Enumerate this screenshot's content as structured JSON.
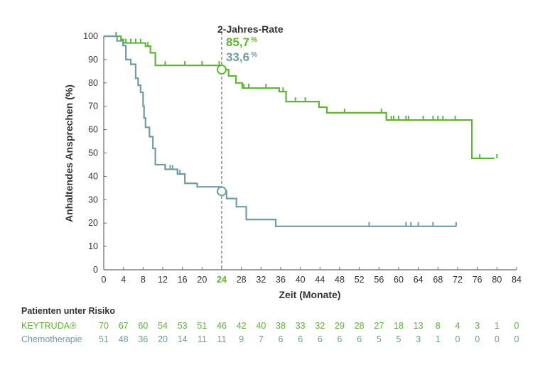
{
  "chart_data": {
    "type": "line",
    "subtype": "kaplan-meier step",
    "xlabel": "Zeit (Monate)",
    "ylabel": "Anhaltendes Ansprechen (%)",
    "xlim": [
      0,
      84
    ],
    "ylim": [
      0,
      100
    ],
    "xticks": [
      0,
      4,
      8,
      12,
      16,
      20,
      24,
      28,
      32,
      36,
      40,
      44,
      48,
      52,
      56,
      60,
      64,
      68,
      72,
      76,
      80,
      84
    ],
    "yticks": [
      0,
      10,
      20,
      30,
      40,
      50,
      60,
      70,
      80,
      90,
      100
    ],
    "highlight_x": 24,
    "grid": false,
    "annotation": {
      "title": "2-Jahres-Rate",
      "values": [
        {
          "value": "85,7",
          "unit": "%",
          "series": 0
        },
        {
          "value": "33,6",
          "unit": "%",
          "series": 1
        }
      ]
    },
    "series": [
      {
        "name": "KEYTRUDA®",
        "color": "#5cb632",
        "steps": [
          [
            0,
            100
          ],
          [
            3.5,
            98.6
          ],
          [
            4,
            97.1
          ],
          [
            8.5,
            95.7
          ],
          [
            9.5,
            92.9
          ],
          [
            10.5,
            87.5
          ],
          [
            24,
            85.7
          ],
          [
            25.4,
            83
          ],
          [
            26.9,
            80
          ],
          [
            28.2,
            77.8
          ],
          [
            35.7,
            76.3
          ],
          [
            37.1,
            72
          ],
          [
            43.8,
            69.6
          ],
          [
            45.4,
            67.2
          ],
          [
            57.5,
            64.1
          ],
          [
            74.9,
            47.7
          ]
        ],
        "end_x": 79.5,
        "censored": [
          2.5,
          4.5,
          5.5,
          6.5,
          7.5,
          9,
          12.5,
          16.5,
          20,
          23.5,
          28.5,
          29.5,
          33,
          36.5,
          39,
          41,
          49,
          56.5,
          57.5,
          58.5,
          59,
          60,
          61.5,
          62,
          65,
          67,
          68,
          69,
          71.5,
          76.5,
          80
        ]
      },
      {
        "name": "Chemotherapie",
        "color": "#6f9ba4",
        "steps": [
          [
            0,
            100
          ],
          [
            2.7,
            98
          ],
          [
            3.9,
            96
          ],
          [
            4.5,
            90
          ],
          [
            5.5,
            88
          ],
          [
            6.5,
            82
          ],
          [
            7,
            79
          ],
          [
            7.5,
            76
          ],
          [
            8,
            70
          ],
          [
            8.2,
            65
          ],
          [
            8.5,
            61
          ],
          [
            9.3,
            57
          ],
          [
            10,
            52
          ],
          [
            10.5,
            45
          ],
          [
            12.5,
            43
          ],
          [
            15,
            41
          ],
          [
            16.5,
            37
          ],
          [
            19,
            35.5
          ],
          [
            24,
            33.6
          ],
          [
            25,
            30.5
          ],
          [
            27,
            27
          ],
          [
            29,
            21.5
          ],
          [
            35,
            18.6
          ]
        ],
        "end_x": 71.7,
        "censored": [
          12.5,
          13.5,
          14,
          15,
          15.5,
          54,
          61.5,
          62.5,
          64,
          67,
          71.7
        ]
      }
    ]
  },
  "risk_table": {
    "title": "Patienten unter Risiko",
    "rows": [
      {
        "label": "KEYTRUDA®",
        "color": "#5cb632",
        "values": [
          "70",
          "67",
          "60",
          "54",
          "53",
          "51",
          "46",
          "42",
          "40",
          "38",
          "33",
          "32",
          "29",
          "28",
          "27",
          "18",
          "13",
          "8",
          "4",
          "3",
          "1",
          "0"
        ]
      },
      {
        "label": "Chemotherapie",
        "color": "#6f9ba4",
        "values": [
          "51",
          "48",
          "36",
          "20",
          "14",
          "11",
          "11",
          "9",
          "7",
          "6",
          "6",
          "6",
          "6",
          "6",
          "5",
          "5",
          "3",
          "1",
          "0",
          "0",
          "0",
          "0"
        ]
      }
    ]
  }
}
